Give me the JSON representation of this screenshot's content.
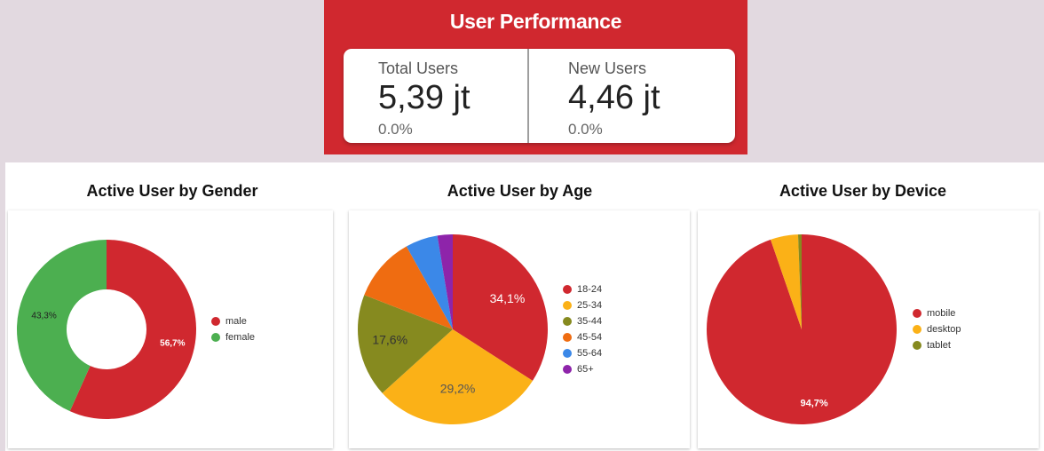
{
  "header": {
    "title": "User Performance",
    "total_users": {
      "label": "Total Users",
      "value": "5,39 jt",
      "change": "0.0%"
    },
    "new_users": {
      "label": "New Users",
      "value": "4,46 jt",
      "change": "0.0%"
    }
  },
  "sections": {
    "gender_title": "Active User by Gender",
    "age_title": "Active User by Age",
    "device_title": "Active User by Device"
  },
  "chart_data": [
    {
      "type": "pie",
      "title": "Active User by Gender",
      "donut": true,
      "categories": [
        "male",
        "female"
      ],
      "values": [
        56.7,
        43.3
      ],
      "labels": [
        "56,7%",
        "43,3%"
      ],
      "colors": [
        "#d0282f",
        "#4caf50"
      ],
      "legend": "right"
    },
    {
      "type": "pie",
      "title": "Active User by Age",
      "categories": [
        "18-24",
        "25-34",
        "35-44",
        "45-54",
        "55-64",
        "65+"
      ],
      "values": [
        34.1,
        29.2,
        17.6,
        11.0,
        5.5,
        2.6
      ],
      "labels": [
        "34,1%",
        "29,2%",
        "17,6%",
        "",
        "",
        ""
      ],
      "colors": [
        "#d0282f",
        "#fbb117",
        "#868a1f",
        "#ef6c11",
        "#3b88e8",
        "#8e24aa"
      ],
      "legend": "right"
    },
    {
      "type": "pie",
      "title": "Active User by Device",
      "categories": [
        "mobile",
        "desktop",
        "tablet"
      ],
      "values": [
        94.7,
        4.7,
        0.6
      ],
      "labels": [
        "94,7%",
        "",
        ""
      ],
      "colors": [
        "#d0282f",
        "#fbb117",
        "#868a1f"
      ],
      "legend": "right"
    }
  ]
}
